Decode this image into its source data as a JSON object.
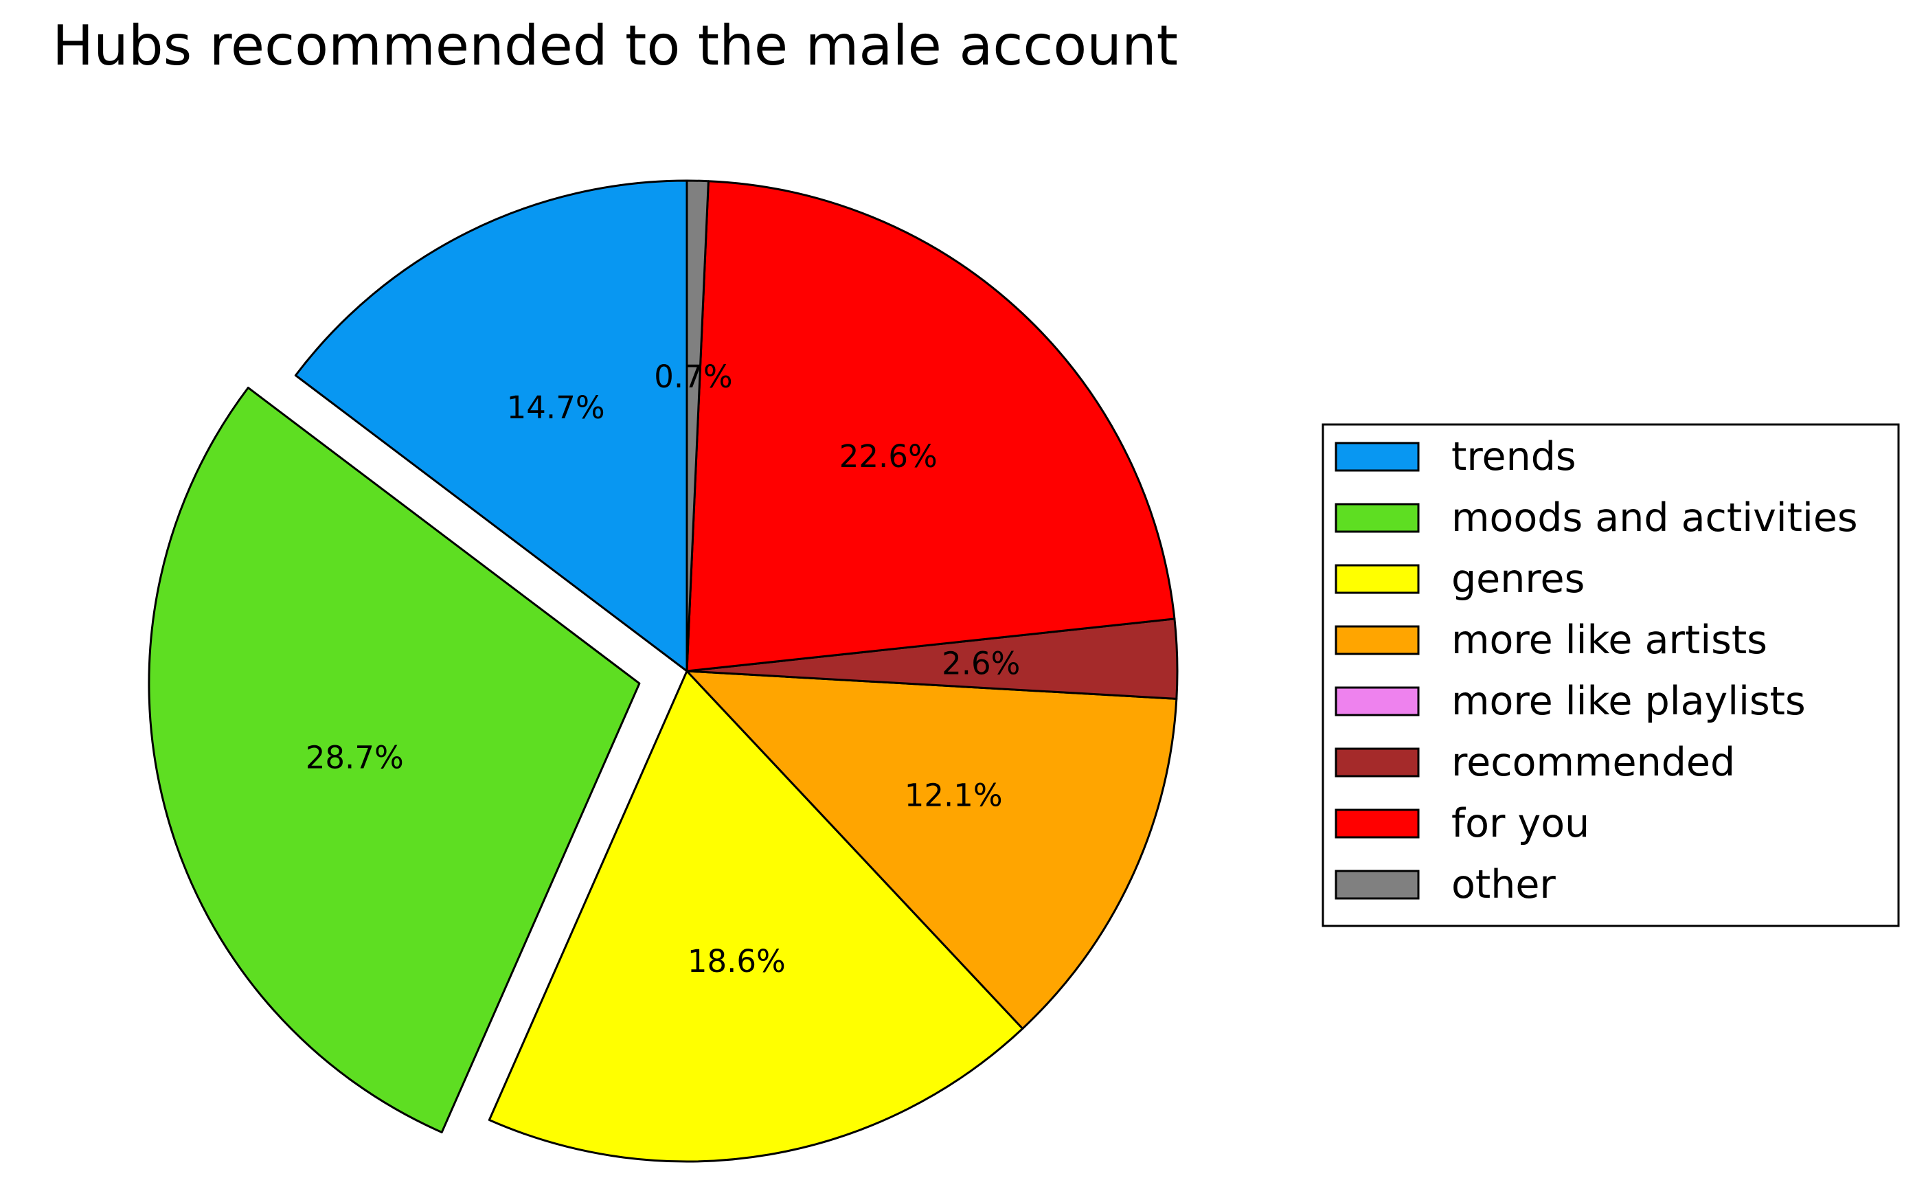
{
  "chart_data": {
    "type": "pie",
    "title": "Hubs recommended to the male account",
    "start_angle_deg": 90,
    "direction": "counterclockwise",
    "label_format": "percent_1dp",
    "legend_position": "right",
    "exploded": [
      "moods and activities"
    ],
    "slices": [
      {
        "label": "trends",
        "value": 14.7,
        "pct_label": "14.7%",
        "color": "#0897F2"
      },
      {
        "label": "moods and activities",
        "value": 28.7,
        "pct_label": "28.7%",
        "color": "#5EDE22"
      },
      {
        "label": "genres",
        "value": 18.6,
        "pct_label": "18.6%",
        "color": "#FFFF00"
      },
      {
        "label": "more like artists",
        "value": 12.1,
        "pct_label": "12.1%",
        "color": "#FFA500"
      },
      {
        "label": "more like playlists",
        "value": 0.0,
        "pct_label": "",
        "color": "#EE82EE"
      },
      {
        "label": "recommended",
        "value": 2.6,
        "pct_label": "2.6%",
        "color": "#A52A2A"
      },
      {
        "label": "for you",
        "value": 22.6,
        "pct_label": "22.6%",
        "color": "#FF0000"
      },
      {
        "label": "other",
        "value": 0.7,
        "pct_label": "0.7%",
        "color": "#808080"
      }
    ]
  }
}
